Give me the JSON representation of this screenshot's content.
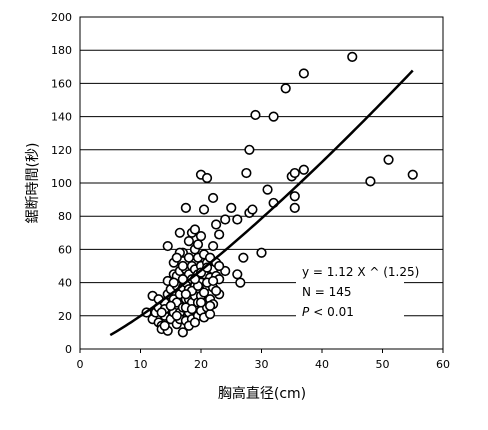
{
  "chart_data": {
    "type": "scatter",
    "xlabel": "胸高直径(cm)",
    "ylabel": "鋸断時間(秒)",
    "xlim": [
      0,
      60
    ],
    "ylim": [
      0,
      200
    ],
    "xticks": [
      "0",
      "10",
      "20",
      "30",
      "40",
      "50",
      "60"
    ],
    "yticks": [
      "0",
      "20",
      "40",
      "60",
      "80",
      "100",
      "120",
      "140",
      "160",
      "180",
      "200"
    ],
    "grid": true,
    "annotations": [
      "y = 1.12 X ^ (1.25)",
      "N = 145",
      "< 0.01"
    ],
    "annotation_p": "P",
    "fit": {
      "a": 1.12,
      "b": 1.25,
      "x_range": [
        5,
        55
      ]
    },
    "points": [
      [
        11,
        22
      ],
      [
        12,
        18
      ],
      [
        12,
        32
      ],
      [
        12.5,
        22
      ],
      [
        13,
        25
      ],
      [
        13,
        16
      ],
      [
        13.5,
        14
      ],
      [
        13.5,
        12
      ],
      [
        14,
        20
      ],
      [
        14,
        28
      ],
      [
        14.5,
        41
      ],
      [
        14.5,
        33
      ],
      [
        14.5,
        62
      ],
      [
        14.5,
        11
      ],
      [
        15,
        36
      ],
      [
        15,
        24
      ],
      [
        15,
        18
      ],
      [
        15.5,
        45
      ],
      [
        15.5,
        30
      ],
      [
        15.5,
        22
      ],
      [
        15.5,
        52
      ],
      [
        16,
        44
      ],
      [
        16,
        28
      ],
      [
        16,
        15
      ],
      [
        16,
        38
      ],
      [
        16.5,
        33
      ],
      [
        16.5,
        47
      ],
      [
        16.5,
        22
      ],
      [
        16.5,
        70
      ],
      [
        16.5,
        18
      ],
      [
        17,
        10
      ],
      [
        17,
        37
      ],
      [
        17,
        25
      ],
      [
        17,
        58
      ],
      [
        17.5,
        85
      ],
      [
        17.5,
        48
      ],
      [
        17.5,
        30
      ],
      [
        17.5,
        17
      ],
      [
        17.5,
        40
      ],
      [
        18,
        55
      ],
      [
        18,
        45
      ],
      [
        18,
        30
      ],
      [
        18,
        22
      ],
      [
        18,
        65
      ],
      [
        18,
        36
      ],
      [
        18.5,
        50
      ],
      [
        18.5,
        28
      ],
      [
        18.5,
        42
      ],
      [
        18.5,
        70
      ],
      [
        18.5,
        18
      ],
      [
        19,
        60
      ],
      [
        19,
        38
      ],
      [
        19,
        24
      ],
      [
        19,
        48
      ],
      [
        19,
        72
      ],
      [
        19,
        32
      ],
      [
        19.5,
        45
      ],
      [
        19.5,
        55
      ],
      [
        19.5,
        28
      ],
      [
        19.5,
        20
      ],
      [
        20,
        105
      ],
      [
        20,
        68
      ],
      [
        20,
        40
      ],
      [
        20,
        50
      ],
      [
        20,
        32
      ],
      [
        20,
        23
      ],
      [
        20.5,
        57
      ],
      [
        20.5,
        45
      ],
      [
        20.5,
        84
      ],
      [
        20.5,
        19
      ],
      [
        21,
        103
      ],
      [
        21,
        52
      ],
      [
        21,
        38
      ],
      [
        21,
        25
      ],
      [
        21.5,
        55
      ],
      [
        21.5,
        43
      ],
      [
        21.5,
        30
      ],
      [
        21.5,
        21
      ],
      [
        22,
        91
      ],
      [
        22,
        48
      ],
      [
        22,
        37
      ],
      [
        22,
        27
      ],
      [
        22.5,
        75
      ],
      [
        22.5,
        52
      ],
      [
        22.5,
        44
      ],
      [
        23,
        69
      ],
      [
        23,
        42
      ],
      [
        23,
        33
      ],
      [
        24,
        78
      ],
      [
        24,
        47
      ],
      [
        25,
        85
      ],
      [
        26,
        45
      ],
      [
        26,
        78
      ],
      [
        26.5,
        40
      ],
      [
        27,
        55
      ],
      [
        27.5,
        106
      ],
      [
        28,
        120
      ],
      [
        28,
        82
      ],
      [
        28.5,
        84
      ],
      [
        29,
        141
      ],
      [
        30,
        58
      ],
      [
        31,
        96
      ],
      [
        32,
        140
      ],
      [
        32,
        88
      ],
      [
        34,
        157
      ],
      [
        35,
        104
      ],
      [
        35.5,
        106
      ],
      [
        35.5,
        92
      ],
      [
        35.5,
        85
      ],
      [
        37,
        166
      ],
      [
        37,
        108
      ],
      [
        45,
        176
      ],
      [
        48,
        101
      ],
      [
        51,
        114
      ],
      [
        55,
        105
      ],
      [
        13,
        30
      ],
      [
        14,
        24
      ],
      [
        15.5,
        40
      ],
      [
        16,
        20
      ],
      [
        16.5,
        58
      ],
      [
        17,
        42
      ],
      [
        17.5,
        25
      ],
      [
        18,
        14
      ],
      [
        18.5,
        35
      ],
      [
        19,
        16
      ],
      [
        19.5,
        38
      ],
      [
        20,
        46
      ],
      [
        20.5,
        34
      ],
      [
        21,
        49
      ],
      [
        21.5,
        26
      ],
      [
        22,
        62
      ],
      [
        22.5,
        35
      ],
      [
        23,
        50
      ],
      [
        17,
        50
      ],
      [
        19.5,
        63
      ],
      [
        16,
        55
      ],
      [
        15,
        26
      ],
      [
        18.5,
        24
      ],
      [
        20,
        28
      ],
      [
        21,
        40
      ],
      [
        14,
        14
      ],
      [
        13.5,
        22
      ],
      [
        17.5,
        33
      ],
      [
        19,
        42
      ],
      [
        22,
        41
      ]
    ]
  }
}
